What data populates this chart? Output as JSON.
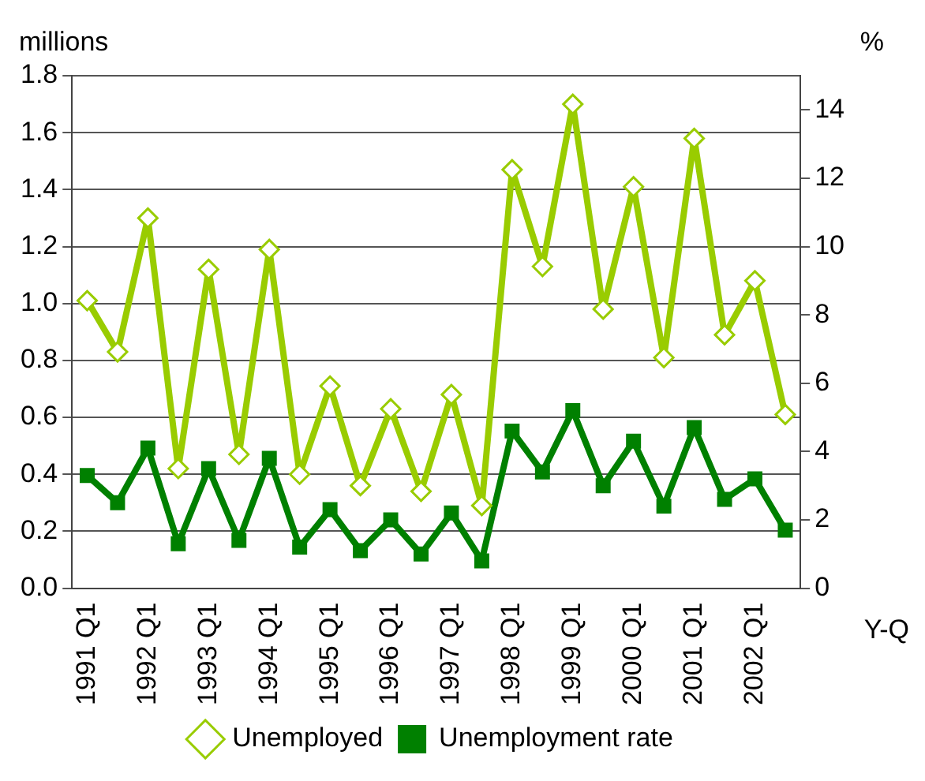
{
  "chart_data": {
    "type": "line",
    "ylabel": "millions",
    "y2label": "%",
    "xlabel": "Y-Q",
    "categories": [
      "1991 Q1",
      null,
      "1992 Q1",
      null,
      "1993 Q1",
      null,
      "1994 Q1",
      null,
      "1995 Q1",
      null,
      "1996 Q1",
      null,
      "1997 Q1",
      null,
      "1998 Q1",
      null,
      "1999 Q1",
      null,
      "2000 Q1",
      null,
      "2001 Q1",
      null,
      "2002 Q1",
      null
    ],
    "series": [
      {
        "name": "Unemployed",
        "color": "#99cc00",
        "marker": "diamond",
        "values": [
          1.01,
          0.83,
          1.3,
          0.42,
          1.12,
          0.47,
          1.19,
          0.4,
          0.71,
          0.36,
          0.63,
          0.34,
          0.68,
          0.29,
          1.47,
          1.13,
          1.7,
          0.98,
          1.41,
          0.81,
          1.58,
          0.89,
          1.08,
          0.61
        ]
      },
      {
        "name": "Unemployment rate",
        "color": "#008000",
        "marker": "square",
        "axis": "y2",
        "values": [
          3.3,
          2.5,
          4.1,
          1.3,
          3.5,
          1.4,
          3.8,
          1.2,
          2.3,
          1.1,
          2.0,
          1.0,
          2.2,
          0.8,
          4.6,
          3.4,
          5.2,
          3.0,
          4.3,
          2.4,
          4.7,
          2.6,
          3.2,
          1.7
        ]
      }
    ],
    "ylim": [
      0,
      1.8
    ],
    "yticks": [
      {
        "value": 0,
        "label": "0.0"
      },
      0.2,
      0.4,
      0.6,
      0.8,
      {
        "value": 1,
        "label": "1.0"
      },
      1.2,
      1.4,
      1.6,
      1.8
    ],
    "y2lim": [
      0,
      15
    ],
    "y2ticks": [
      0,
      2,
      4,
      6,
      8,
      10,
      12,
      14
    ],
    "grid": "y",
    "legend": "bottom"
  }
}
